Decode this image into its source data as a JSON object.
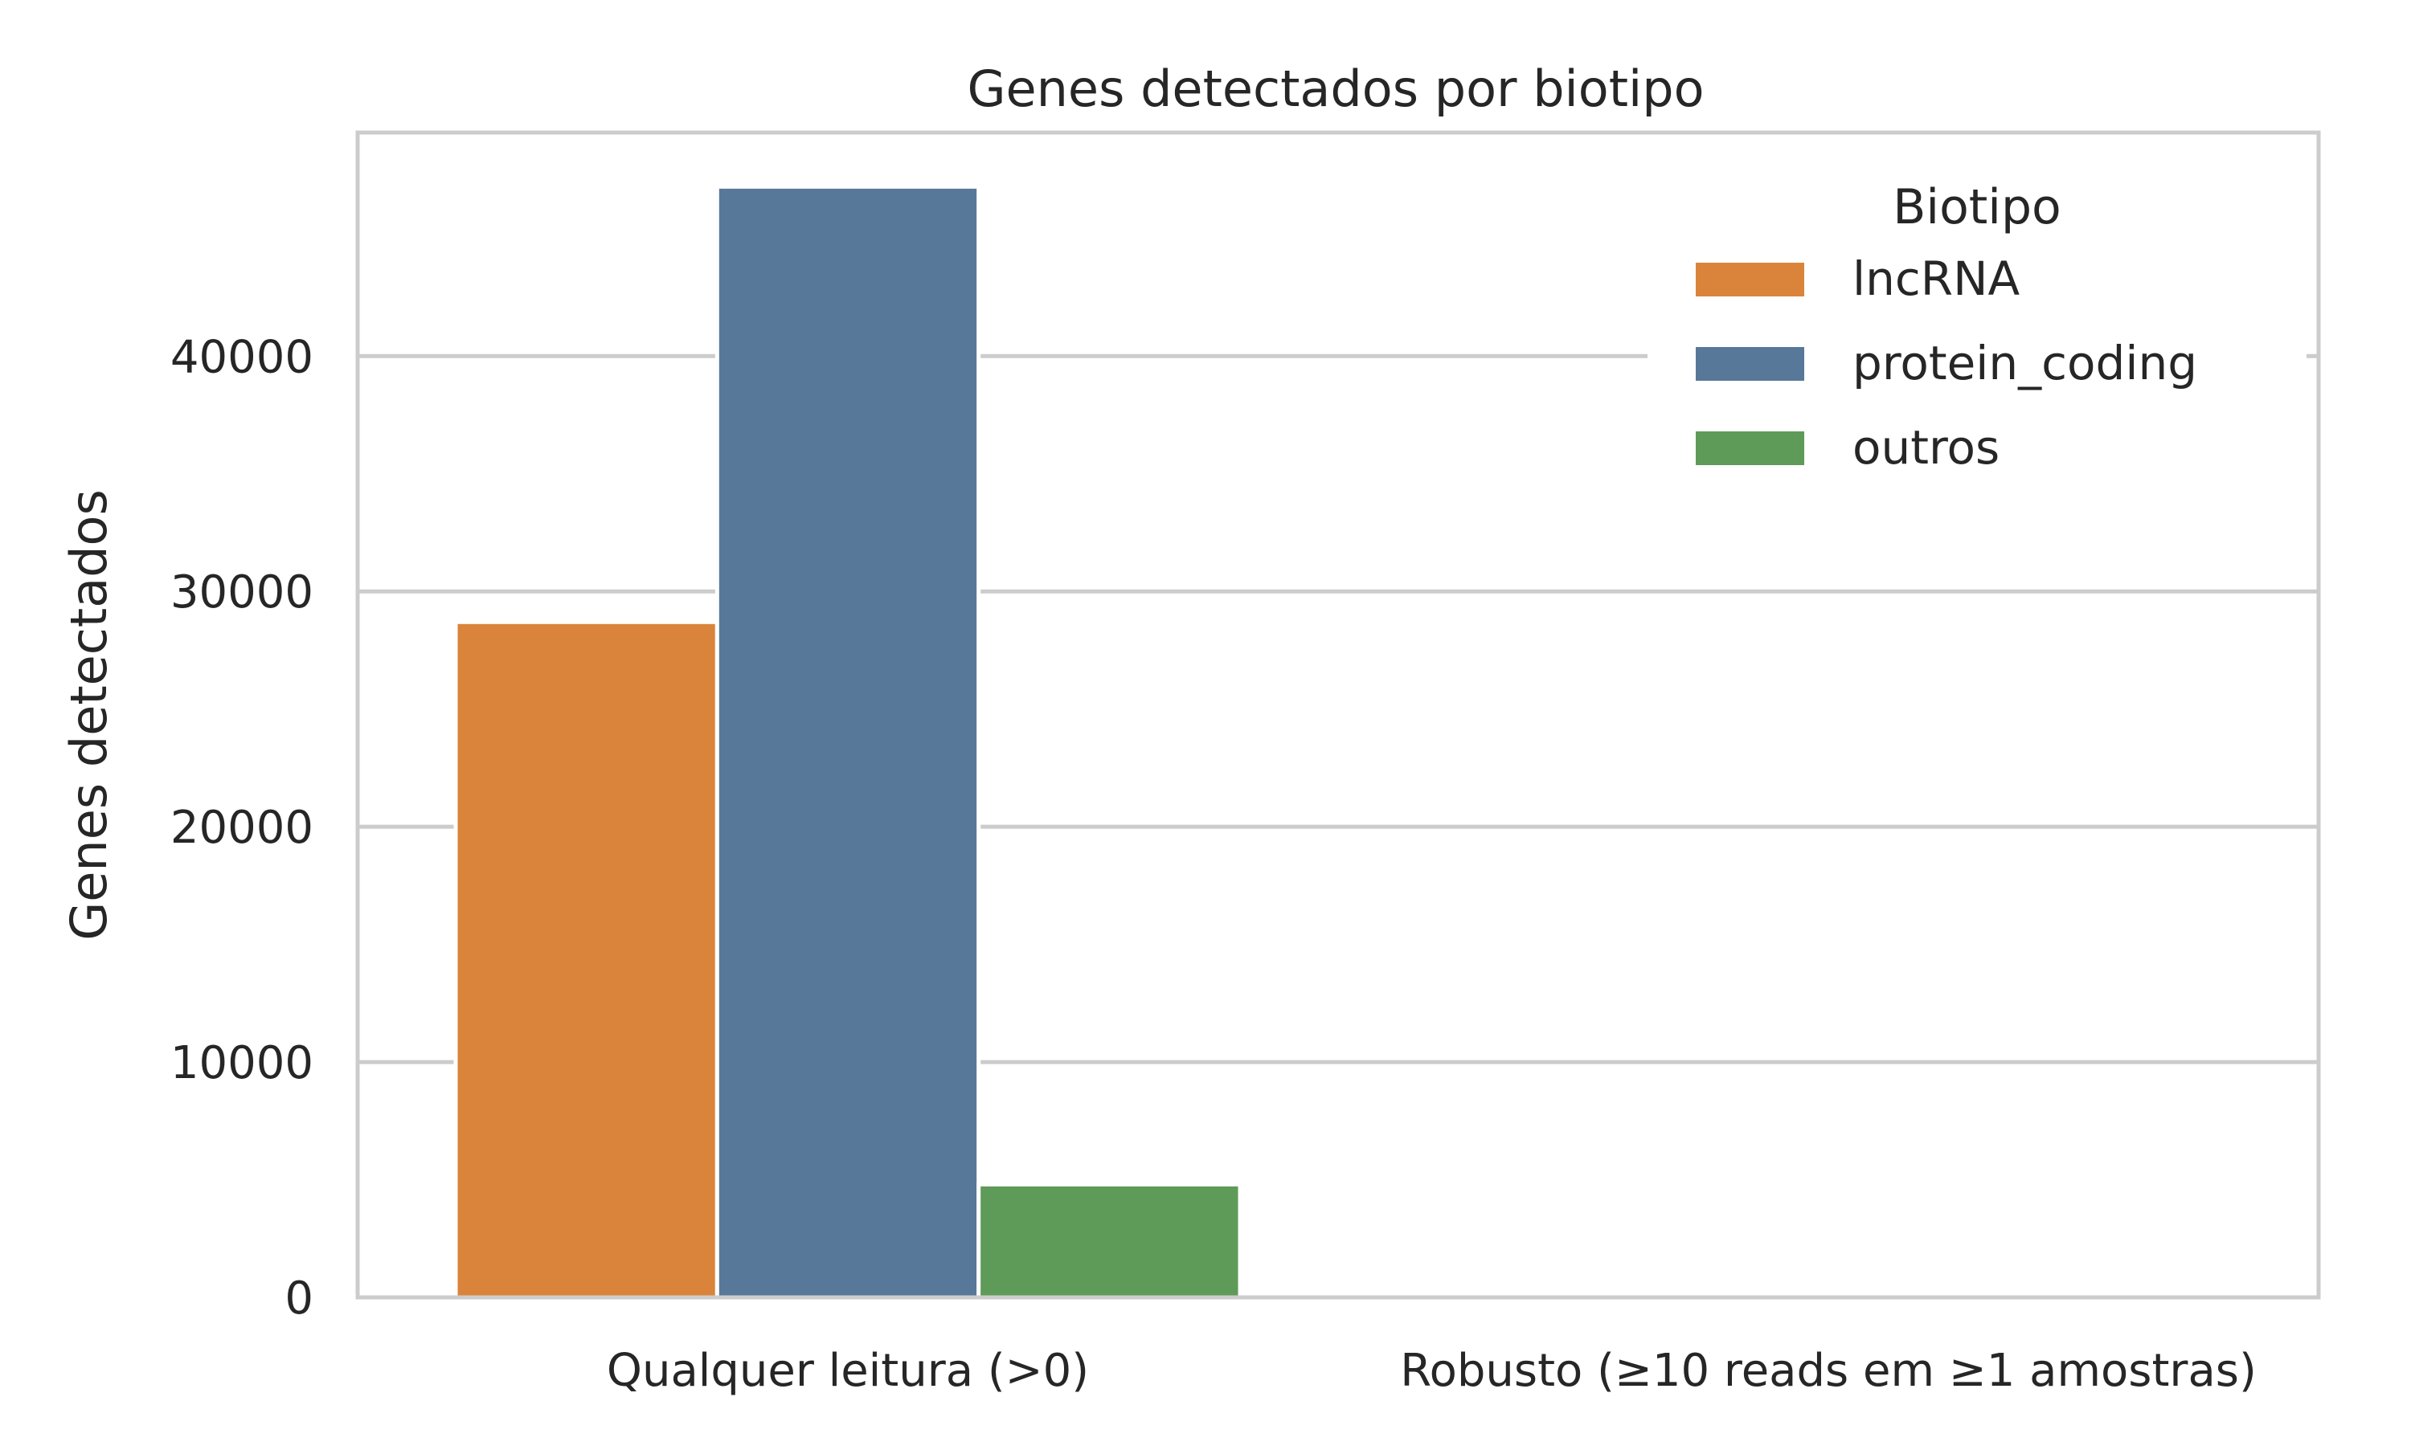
{
  "chart_data": {
    "type": "bar",
    "title": "Genes detectados por biotipo",
    "xlabel": "",
    "ylabel": "Genes detectados",
    "categories": [
      "Qualquer leitura (>0)",
      "Robusto (≥10 reads em ≥1 amostras)"
    ],
    "series": [
      {
        "name": "lncRNA",
        "color": "#d9843a",
        "values": [
          28700,
          0
        ]
      },
      {
        "name": "protein_coding",
        "color": "#587899",
        "values": [
          47200,
          0
        ]
      },
      {
        "name": "outros",
        "color": "#5e9a58",
        "values": [
          4800,
          0
        ]
      }
    ],
    "ylim": [
      0,
      49500
    ],
    "yticks": [
      0,
      10000,
      20000,
      30000,
      40000
    ],
    "ytick_labels": [
      "0",
      "10000",
      "20000",
      "30000",
      "40000"
    ],
    "grid": true,
    "legend": {
      "title": "Biotipo",
      "placement": "top-right"
    },
    "colors": {
      "grid": "#cccccc",
      "frame": "#cccccc",
      "text": "#262626"
    }
  }
}
